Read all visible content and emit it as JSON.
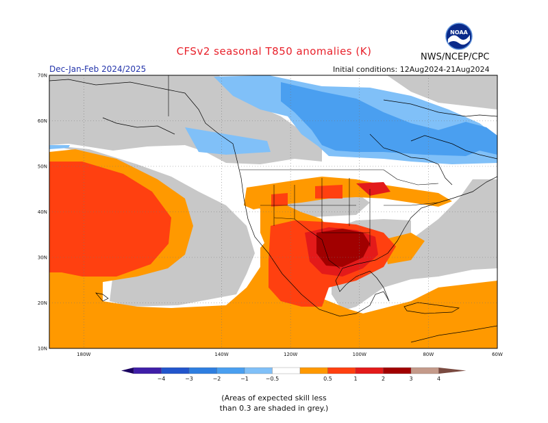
{
  "title": "CFSv2 seasonal T850 anomalies (K)",
  "agency": "NWS/NCEP/CPC",
  "logo_text": "NOAA",
  "season": "Dec-Jan-Feb 2024/2025",
  "initial_conditions": "Initial conditions: 12Aug2024-21Aug2024",
  "map": {
    "projection": "lat-lon",
    "lon_range": [
      -190,
      -60
    ],
    "lat_range": [
      10,
      70
    ],
    "lon_ticks": [
      {
        "lon": -180,
        "label": "180W"
      },
      {
        "lon": -140,
        "label": "140W"
      },
      {
        "lon": -120,
        "label": "120W"
      },
      {
        "lon": -100,
        "label": "100W"
      },
      {
        "lon": -80,
        "label": "80W"
      },
      {
        "lon": -60,
        "label": "60W"
      }
    ],
    "lat_ticks": [
      {
        "lat": 10,
        "label": "10N"
      },
      {
        "lat": 20,
        "label": "20N"
      },
      {
        "lat": 30,
        "label": "30N"
      },
      {
        "lat": 40,
        "label": "40N"
      },
      {
        "lat": 50,
        "label": "50N"
      },
      {
        "lat": 60,
        "label": "60N"
      },
      {
        "lat": 70,
        "label": "70N"
      }
    ]
  },
  "legend": {
    "bins": [
      {
        "label": "−4",
        "color": "#3f1ea8"
      },
      {
        "label": "−3",
        "color": "#2255cc"
      },
      {
        "label": "−2",
        "color": "#2e7ee0"
      },
      {
        "label": "−1",
        "color": "#4a9ff0"
      },
      {
        "label": "−0.5",
        "color": "#80c0f8"
      },
      {
        "label": "",
        "color": "#ffffff"
      },
      {
        "label": "0.5",
        "color": "#ff9900"
      },
      {
        "label": "1",
        "color": "#ff4010"
      },
      {
        "label": "2",
        "color": "#e31a1a"
      },
      {
        "label": "3",
        "color": "#a10000"
      },
      {
        "label": "4",
        "color": "#c49a8a"
      }
    ],
    "low_arrow_color": "#1a0060",
    "high_arrow_color": "#7a4a40"
  },
  "colors": {
    "skill_mask": "#c8c8c8",
    "neutral": "#ffffff"
  },
  "footnote": [
    "(Areas of expected skill less",
    "than 0.3 are shaded in grey.)"
  ]
}
